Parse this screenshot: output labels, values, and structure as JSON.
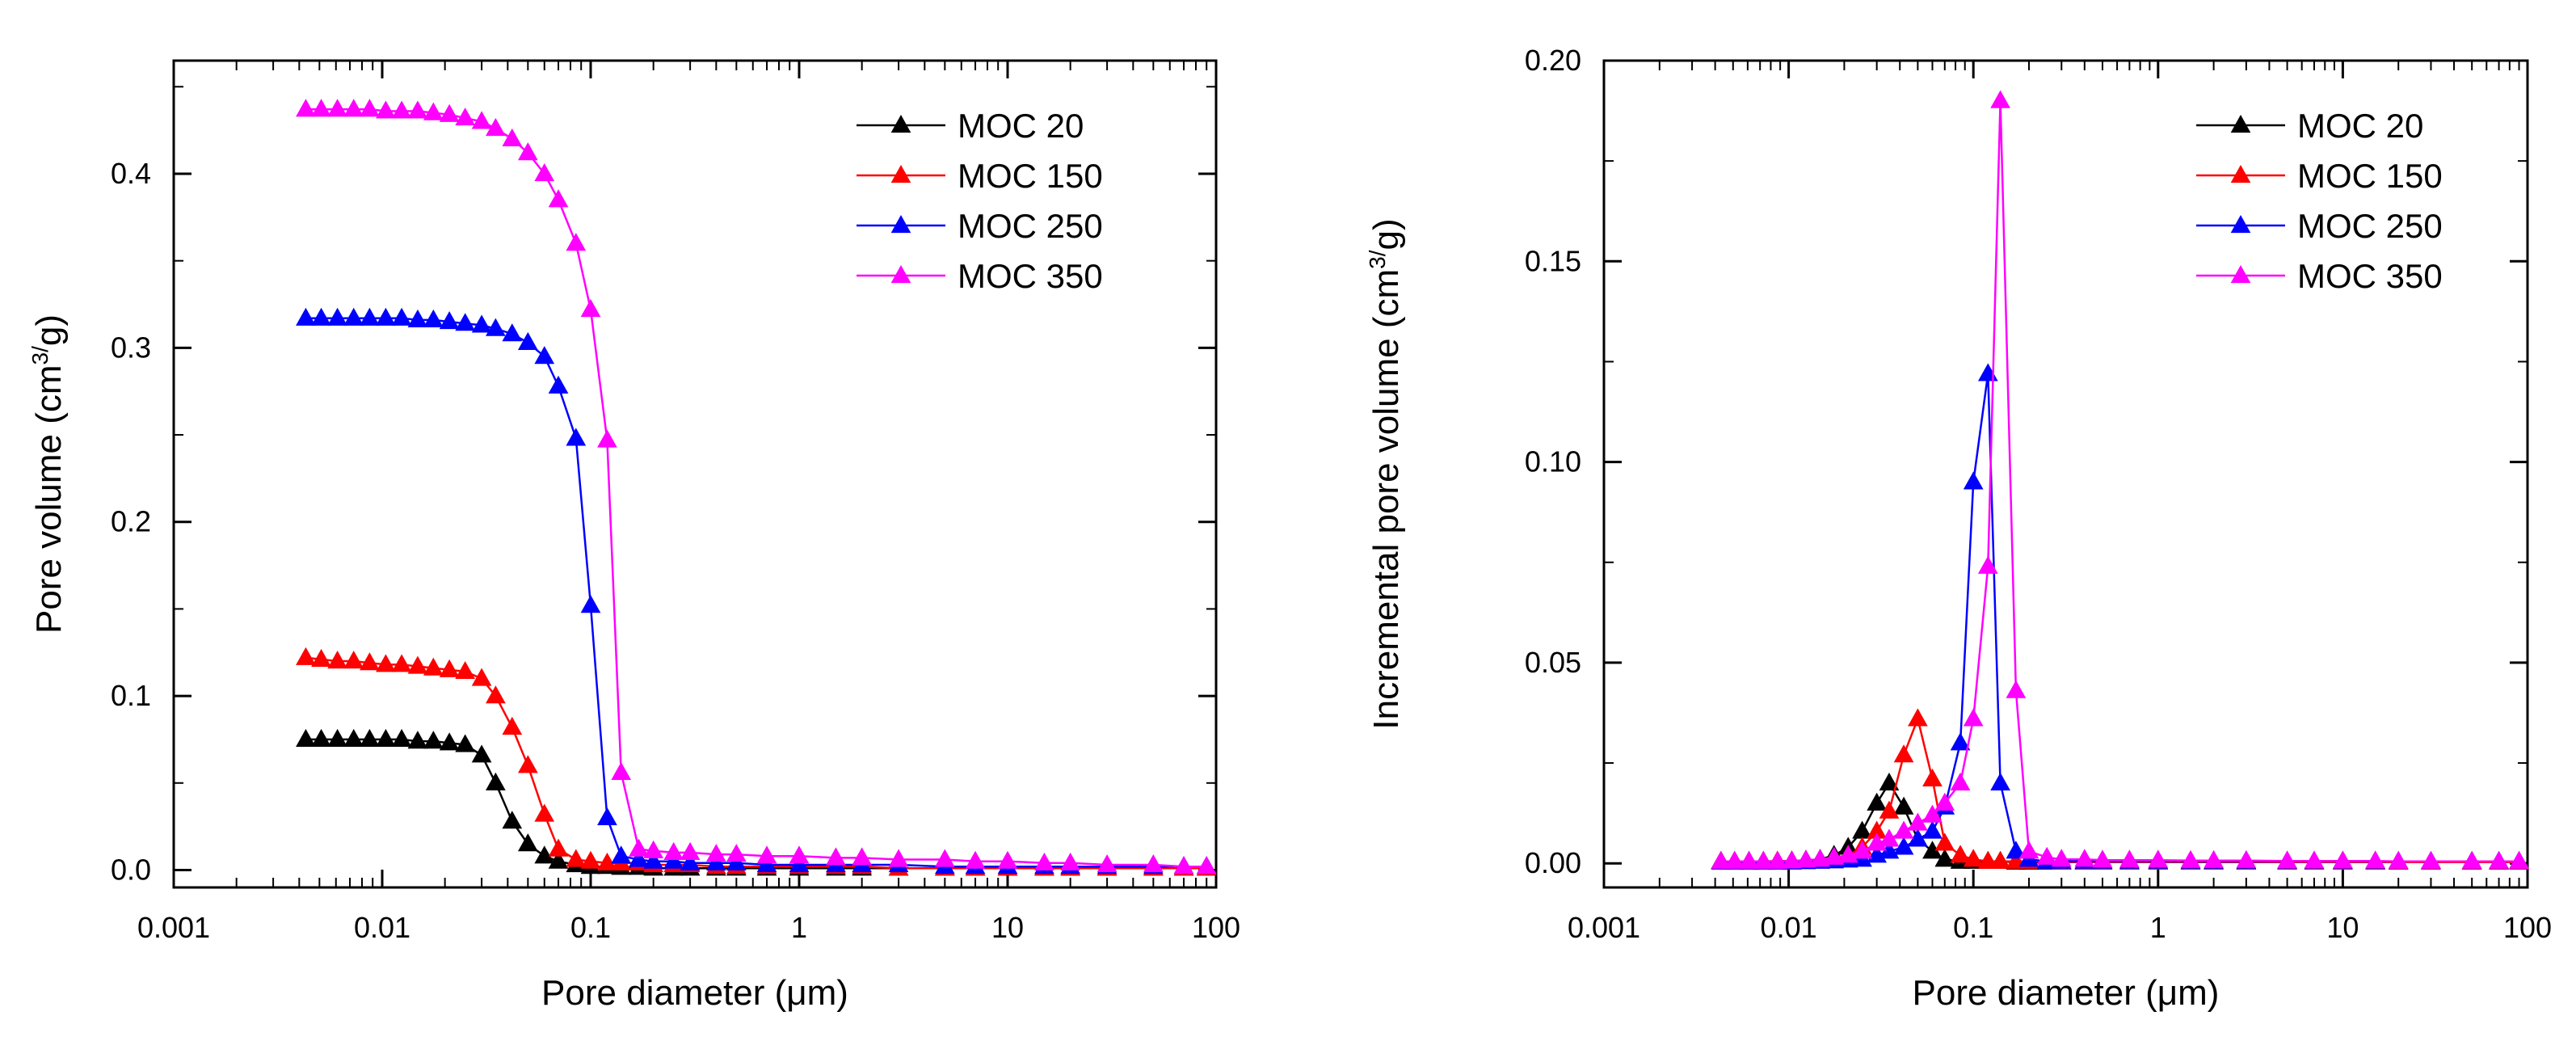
{
  "chart_data": [
    {
      "type": "line",
      "title": "",
      "xlabel": "Pore diameter (μm)",
      "ylabel_main": "Pore volume (cm",
      "ylabel_sup": "3/",
      "ylabel_tail": "g)",
      "xscale": "log",
      "xlim": [
        0.001,
        100
      ],
      "ylim": [
        -0.01,
        0.465
      ],
      "xticks": [
        0.001,
        0.01,
        0.1,
        1,
        10,
        100
      ],
      "xtick_labels": [
        "0.001",
        "0.01",
        "0.1",
        "1",
        "10",
        "100"
      ],
      "yticks": [
        0.0,
        0.1,
        0.2,
        0.3,
        0.4
      ],
      "ytick_labels": [
        "0.0",
        "0.1",
        "0.2",
        "0.3",
        "0.4"
      ],
      "legend_position": "top-right",
      "series": [
        {
          "name": "MOC 20",
          "color": "#000000",
          "x": [
            0.0043,
            0.0051,
            0.0061,
            0.0073,
            0.0087,
            0.0104,
            0.0124,
            0.0148,
            0.0176,
            0.021,
            0.025,
            0.03,
            0.035,
            0.042,
            0.05,
            0.06,
            0.07,
            0.085,
            0.1,
            0.12,
            0.14,
            0.17,
            0.2,
            0.25,
            0.3,
            0.4,
            0.5,
            0.7,
            1,
            1.5,
            2,
            3,
            5,
            7,
            10,
            15,
            20,
            30,
            50,
            70,
            90
          ],
          "y": [
            0.075,
            0.075,
            0.075,
            0.075,
            0.075,
            0.075,
            0.075,
            0.074,
            0.074,
            0.073,
            0.072,
            0.066,
            0.05,
            0.028,
            0.015,
            0.008,
            0.005,
            0.003,
            0.002,
            0.002,
            0.0015,
            0.0015,
            0.001,
            0.001,
            0.001,
            0.001,
            0.001,
            0.001,
            0.001,
            0.001,
            0.001,
            0.001,
            0.001,
            0.001,
            0.001,
            0.001,
            0.001,
            0.001,
            0.001,
            0.001,
            0.001
          ]
        },
        {
          "name": "MOC 150",
          "color": "#ff0000",
          "x": [
            0.0043,
            0.0051,
            0.0061,
            0.0073,
            0.0087,
            0.0104,
            0.0124,
            0.0148,
            0.0176,
            0.021,
            0.025,
            0.03,
            0.035,
            0.042,
            0.05,
            0.06,
            0.07,
            0.085,
            0.1,
            0.12,
            0.14,
            0.17,
            0.2,
            0.25,
            0.3,
            0.4,
            0.5,
            0.7,
            1,
            1.5,
            2,
            3,
            5,
            7,
            10,
            15,
            20,
            30,
            50,
            70,
            90
          ],
          "y": [
            0.122,
            0.121,
            0.12,
            0.12,
            0.119,
            0.118,
            0.118,
            0.117,
            0.116,
            0.115,
            0.114,
            0.11,
            0.1,
            0.082,
            0.06,
            0.032,
            0.012,
            0.006,
            0.005,
            0.004,
            0.004,
            0.004,
            0.003,
            0.003,
            0.003,
            0.002,
            0.002,
            0.002,
            0.002,
            0.002,
            0.002,
            0.001,
            0.001,
            0.001,
            0.001,
            0.001,
            0.001,
            0.001,
            0.001,
            0.001,
            0.001
          ]
        },
        {
          "name": "MOC 250",
          "color": "#0000ff",
          "x": [
            0.0043,
            0.0051,
            0.0061,
            0.0073,
            0.0087,
            0.0104,
            0.0124,
            0.0148,
            0.0176,
            0.021,
            0.025,
            0.03,
            0.035,
            0.042,
            0.05,
            0.06,
            0.07,
            0.085,
            0.1,
            0.12,
            0.14,
            0.17,
            0.2,
            0.25,
            0.3,
            0.4,
            0.5,
            0.7,
            1,
            1.5,
            2,
            3,
            5,
            7,
            10,
            15,
            20,
            30,
            50,
            70,
            90
          ],
          "y": [
            0.317,
            0.317,
            0.317,
            0.317,
            0.317,
            0.317,
            0.317,
            0.316,
            0.316,
            0.315,
            0.314,
            0.313,
            0.311,
            0.308,
            0.303,
            0.295,
            0.278,
            0.248,
            0.152,
            0.03,
            0.008,
            0.006,
            0.005,
            0.005,
            0.004,
            0.004,
            0.004,
            0.003,
            0.003,
            0.003,
            0.003,
            0.003,
            0.002,
            0.002,
            0.002,
            0.002,
            0.002,
            0.002,
            0.002,
            0.002,
            0.002
          ]
        },
        {
          "name": "MOC 350",
          "color": "#ff00ff",
          "x": [
            0.0043,
            0.0051,
            0.0061,
            0.0073,
            0.0087,
            0.0104,
            0.0124,
            0.0148,
            0.0176,
            0.021,
            0.025,
            0.03,
            0.035,
            0.042,
            0.05,
            0.06,
            0.07,
            0.085,
            0.1,
            0.12,
            0.14,
            0.17,
            0.2,
            0.25,
            0.3,
            0.4,
            0.5,
            0.7,
            1,
            1.5,
            2,
            3,
            5,
            7,
            10,
            15,
            20,
            30,
            50,
            70,
            90
          ],
          "y": [
            0.437,
            0.437,
            0.437,
            0.437,
            0.437,
            0.436,
            0.436,
            0.436,
            0.435,
            0.434,
            0.432,
            0.43,
            0.426,
            0.42,
            0.412,
            0.4,
            0.385,
            0.36,
            0.322,
            0.247,
            0.056,
            0.012,
            0.011,
            0.01,
            0.01,
            0.009,
            0.009,
            0.008,
            0.008,
            0.007,
            0.007,
            0.006,
            0.006,
            0.005,
            0.005,
            0.004,
            0.004,
            0.003,
            0.003,
            0.002,
            0.002
          ]
        }
      ]
    },
    {
      "type": "line",
      "title": "",
      "xlabel": "Pore diameter (μm)",
      "ylabel_main": "Incremental pore volume (cm",
      "ylabel_sup": "3/",
      "ylabel_tail": "g)",
      "xscale": "log",
      "xlim": [
        0.001,
        100
      ],
      "ylim": [
        -0.006,
        0.2
      ],
      "xticks": [
        0.001,
        0.01,
        0.1,
        1,
        10,
        100
      ],
      "xtick_labels": [
        "0.001",
        "0.01",
        "0.1",
        "1",
        "10",
        "100"
      ],
      "yticks": [
        0.0,
        0.05,
        0.1,
        0.15,
        0.2
      ],
      "ytick_labels": [
        "0.00",
        "0.05",
        "0.10",
        "0.15",
        "0.20"
      ],
      "legend_position": "top-right",
      "series": [
        {
          "name": "MOC 20",
          "color": "#000000",
          "x": [
            0.0043,
            0.0051,
            0.0061,
            0.0073,
            0.0087,
            0.0104,
            0.0124,
            0.0148,
            0.0176,
            0.021,
            0.025,
            0.03,
            0.035,
            0.042,
            0.05,
            0.06,
            0.07,
            0.085,
            0.1,
            0.12,
            0.14,
            0.17,
            0.2,
            0.25,
            0.3,
            0.4,
            0.5,
            0.7,
            1,
            1.5,
            2,
            3,
            5,
            7,
            10,
            15,
            20,
            30,
            50,
            70,
            90
          ],
          "y": [
            0.0005,
            0.0005,
            0.0005,
            0.0005,
            0.0005,
            0.0006,
            0.0008,
            0.001,
            0.002,
            0.004,
            0.008,
            0.015,
            0.02,
            0.014,
            0.006,
            0.003,
            0.001,
            0.0005,
            0.0005,
            0.0005,
            0.0005,
            0.0003,
            0.0003,
            0.0003,
            0.0003,
            0.0003,
            0.0003,
            0.0003,
            0.0003,
            0.0003,
            0.0003,
            0.0003,
            0.0003,
            0.0003,
            0.0003,
            0.0003,
            0.0003,
            0.0003,
            0.0003,
            0.0003,
            0.0003
          ]
        },
        {
          "name": "MOC 150",
          "color": "#ff0000",
          "x": [
            0.0043,
            0.0051,
            0.0061,
            0.0073,
            0.0087,
            0.0104,
            0.0124,
            0.0148,
            0.0176,
            0.021,
            0.025,
            0.03,
            0.035,
            0.042,
            0.05,
            0.06,
            0.07,
            0.085,
            0.1,
            0.12,
            0.14,
            0.17,
            0.2,
            0.25,
            0.3,
            0.4,
            0.5,
            0.7,
            1,
            1.5,
            2,
            3,
            5,
            7,
            10,
            15,
            20,
            30,
            50,
            70,
            90
          ],
          "y": [
            0.0005,
            0.0005,
            0.0005,
            0.0005,
            0.0006,
            0.0006,
            0.0007,
            0.0008,
            0.001,
            0.002,
            0.004,
            0.008,
            0.013,
            0.027,
            0.036,
            0.021,
            0.005,
            0.002,
            0.001,
            0.0005,
            0.0005,
            0.0005,
            0.0005,
            0.0005,
            0.0003,
            0.0003,
            0.0003,
            0.0003,
            0.0003,
            0.0003,
            0.0003,
            0.0003,
            0.0003,
            0.0003,
            0.0003,
            0.0003,
            0.0003,
            0.0003,
            0.0003,
            0.0003,
            0.0003
          ]
        },
        {
          "name": "MOC 250",
          "color": "#0000ff",
          "x": [
            0.0043,
            0.0051,
            0.0061,
            0.0073,
            0.0087,
            0.0104,
            0.0124,
            0.0148,
            0.0176,
            0.021,
            0.025,
            0.03,
            0.035,
            0.042,
            0.05,
            0.06,
            0.07,
            0.085,
            0.1,
            0.12,
            0.14,
            0.17,
            0.2,
            0.25,
            0.3,
            0.4,
            0.5,
            0.7,
            1,
            1.5,
            2,
            3,
            5,
            7,
            10,
            15,
            20,
            30,
            50,
            70,
            90
          ],
          "y": [
            0.0003,
            0.0003,
            0.0003,
            0.0003,
            0.0003,
            0.0003,
            0.0004,
            0.0005,
            0.0006,
            0.0008,
            0.001,
            0.002,
            0.003,
            0.004,
            0.006,
            0.008,
            0.014,
            0.03,
            0.095,
            0.122,
            0.02,
            0.003,
            0.001,
            0.0005,
            0.0005,
            0.0005,
            0.0005,
            0.0005,
            0.0005,
            0.0005,
            0.0005,
            0.0005,
            0.0005,
            0.0005,
            0.0005,
            0.0005,
            0.0005,
            0.0005,
            0.0005,
            0.0005,
            0.0005
          ]
        },
        {
          "name": "MOC 350",
          "color": "#ff00ff",
          "x": [
            0.0043,
            0.0051,
            0.0061,
            0.0073,
            0.0087,
            0.0104,
            0.0124,
            0.0148,
            0.0176,
            0.021,
            0.025,
            0.03,
            0.035,
            0.042,
            0.05,
            0.06,
            0.07,
            0.085,
            0.1,
            0.12,
            0.14,
            0.17,
            0.2,
            0.25,
            0.3,
            0.4,
            0.5,
            0.7,
            1,
            1.5,
            2,
            3,
            5,
            7,
            10,
            15,
            20,
            30,
            50,
            70,
            90
          ],
          "y": [
            0.0005,
            0.0005,
            0.0005,
            0.0005,
            0.0005,
            0.0006,
            0.0008,
            0.001,
            0.0015,
            0.002,
            0.003,
            0.005,
            0.006,
            0.008,
            0.01,
            0.012,
            0.015,
            0.02,
            0.036,
            0.074,
            0.19,
            0.043,
            0.003,
            0.0015,
            0.001,
            0.001,
            0.0008,
            0.0008,
            0.0008,
            0.0007,
            0.0007,
            0.0007,
            0.0006,
            0.0006,
            0.0006,
            0.0006,
            0.0005,
            0.0005,
            0.0005,
            0.0005,
            0.0005
          ]
        }
      ]
    }
  ]
}
